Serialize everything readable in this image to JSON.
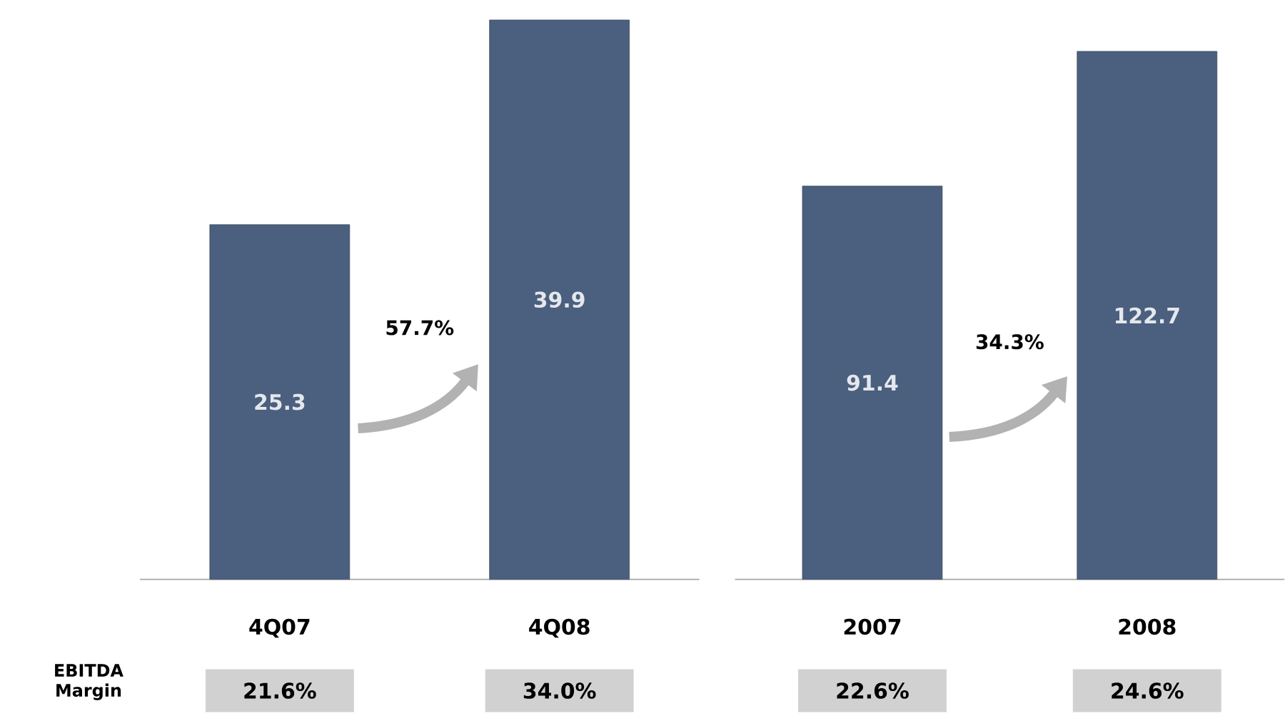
{
  "chart_data": [
    {
      "type": "bar",
      "categories": [
        "4Q07",
        "4Q08"
      ],
      "values": [
        25.3,
        39.9
      ],
      "color": "#4b5f7e",
      "data_labels": true,
      "annotations": [
        "57.7%",
        "EBITDA Margin",
        "21.6%",
        "34.0%"
      ]
    },
    {
      "type": "bar",
      "categories": [
        "2007",
        "2008"
      ],
      "values": [
        91.4,
        122.7
      ],
      "color": "#4b5f7e",
      "data_labels": true,
      "annotations": [
        "34.3%",
        "22.6%",
        "24.6%"
      ]
    }
  ]
}
